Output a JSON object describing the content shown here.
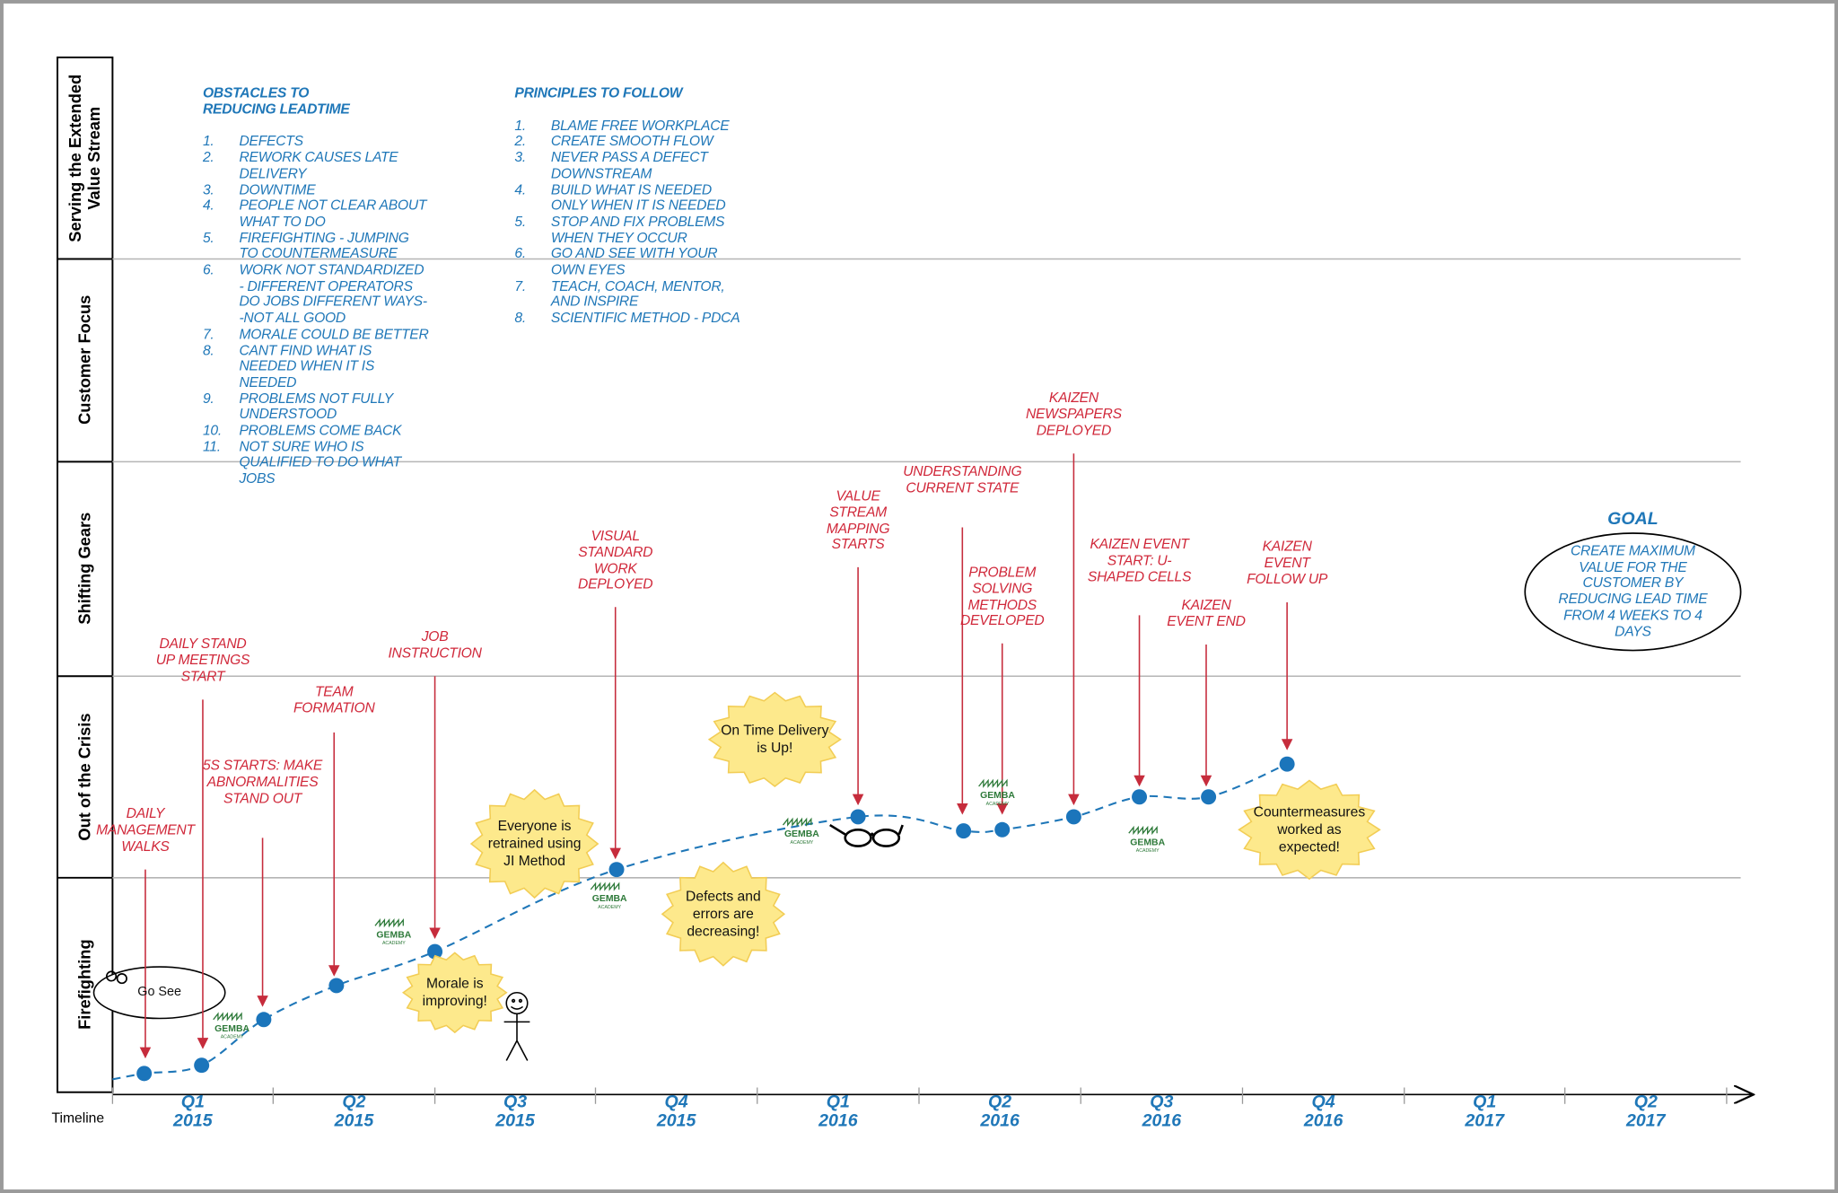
{
  "lanes": [
    "Serving the Extended Value Stream",
    "Customer Focus",
    "Shifting Gears",
    "Out of the Crisis",
    "Firefighting"
  ],
  "timeline_label": "Timeline",
  "obstacles": {
    "title": "OBSTACLES TO REDUCING LEADTIME",
    "items": [
      {
        "n": "1.",
        "text": "DEFECTS"
      },
      {
        "n": "2.",
        "text": "REWORK CAUSES LATE DELIVERY"
      },
      {
        "n": "3.",
        "text": "DOWNTIME"
      },
      {
        "n": "4.",
        "text": "PEOPLE NOT CLEAR ABOUT WHAT TO DO"
      },
      {
        "n": "5.",
        "text": "FIREFIGHTING - JUMPING TO COUNTERMEASURE"
      },
      {
        "n": "6.",
        "text": "WORK NOT STANDARDIZED - DIFFERENT OPERATORS DO JOBS DIFFERENT WAYS--NOT ALL GOOD"
      },
      {
        "n": "7.",
        "text": "MORALE COULD BE BETTER"
      },
      {
        "n": "8.",
        "text": "CANT FIND WHAT IS NEEDED WHEN IT IS NEEDED"
      },
      {
        "n": "9.",
        "text": "PROBLEMS NOT FULLY UNDERSTOOD"
      },
      {
        "n": "10.",
        "text": "PROBLEMS COME BACK"
      },
      {
        "n": "11.",
        "text": "NOT SURE WHO IS QUALIFIED TO DO WHAT JOBS"
      }
    ]
  },
  "principles": {
    "title": "PRINCIPLES TO FOLLOW",
    "items": [
      {
        "n": "1.",
        "text": "BLAME FREE WORKPLACE"
      },
      {
        "n": "2.",
        "text": "CREATE SMOOTH FLOW"
      },
      {
        "n": "3.",
        "text": "NEVER PASS A DEFECT DOWNSTREAM"
      },
      {
        "n": "4.",
        "text": "BUILD WHAT IS NEEDED ONLY WHEN IT IS NEEDED"
      },
      {
        "n": "5.",
        "text": "STOP AND FIX PROBLEMS WHEN THEY OCCUR"
      },
      {
        "n": "6.",
        "text": "GO AND SEE WITH YOUR OWN EYES"
      },
      {
        "n": "7.",
        "text": "TEACH, COACH, MENTOR, AND INSPIRE"
      },
      {
        "n": "8.",
        "text": "SCIENTIFIC METHOD - PDCA"
      }
    ]
  },
  "events": [
    "DAILY MANAGEMENT WALKS",
    "DAILY STAND UP MEETINGS START",
    "5S STARTS: MAKE ABNORMALITIES STAND OUT",
    "TEAM FORMATION",
    "JOB INSTRUCTION",
    "VISUAL STANDARD WORK DEPLOYED",
    "VALUE STREAM MAPPING STARTS",
    "UNDERSTANDING CURRENT STATE",
    "PROBLEM SOLVING METHODS DEVELOPED",
    "KAIZEN NEWSPAPERS DEPLOYED",
    "KAIZEN EVENT START: U-SHAPED CELLS",
    "KAIZEN EVENT END",
    "KAIZEN EVENT FOLLOW UP"
  ],
  "callouts": [
    "On Time Delivery is Up!",
    "Everyone is retrained using JI Method",
    "Defects and errors are decreasing!",
    "Morale is improving!",
    "Countermeasures worked as expected!"
  ],
  "go_see": "Go See",
  "goal": {
    "title": "GOAL",
    "text": "CREATE MAXIMUM VALUE FOR THE CUSTOMER BY REDUCING LEAD TIME FROM 4 WEEKS TO 4 DAYS"
  },
  "quarters": [
    {
      "q": "Q1",
      "year": "2015"
    },
    {
      "q": "Q2",
      "year": "2015"
    },
    {
      "q": "Q3",
      "year": "2015"
    },
    {
      "q": "Q4",
      "year": "2015"
    },
    {
      "q": "Q1",
      "year": "2016"
    },
    {
      "q": "Q2",
      "year": "2016"
    },
    {
      "q": "Q3",
      "year": "2016"
    },
    {
      "q": "Q4",
      "year": "2016"
    },
    {
      "q": "Q1",
      "year": "2017"
    },
    {
      "q": "Q2",
      "year": "2017"
    }
  ],
  "logo": {
    "name": "GEMBA",
    "sub": "ACADEMY"
  }
}
